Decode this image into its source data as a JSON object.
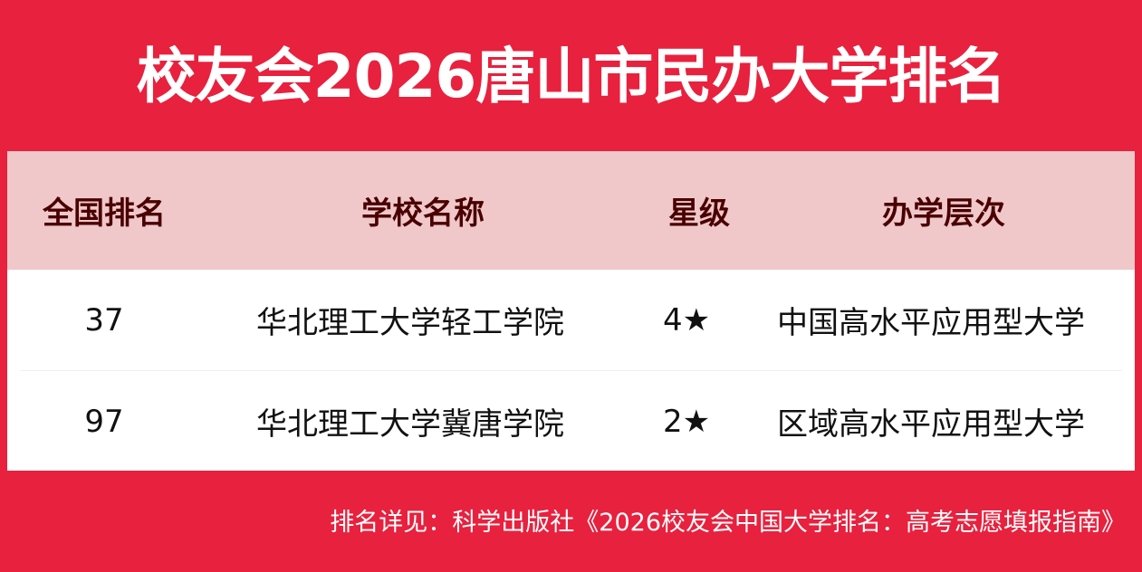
{
  "title": "校友会2026唐山市民办大学排名",
  "table": {
    "headers": [
      "全国排名",
      "学校名称",
      "星级",
      "办学层次"
    ],
    "rows": [
      {
        "rank": "37",
        "name": "华北理工大学轻工学院",
        "stars": "4★",
        "level": "中国高水平应用型大学"
      },
      {
        "rank": "97",
        "name": "华北理工大学冀唐学院",
        "stars": "2★",
        "level": "区域高水平应用型大学"
      }
    ]
  },
  "footer": "排名详见：科学出版社《2026校友会中国大学排名：高考志愿填报指南》",
  "colors": {
    "background": "#e8213e",
    "header_bg": "#f0c8ca",
    "header_text": "#4a0000"
  }
}
